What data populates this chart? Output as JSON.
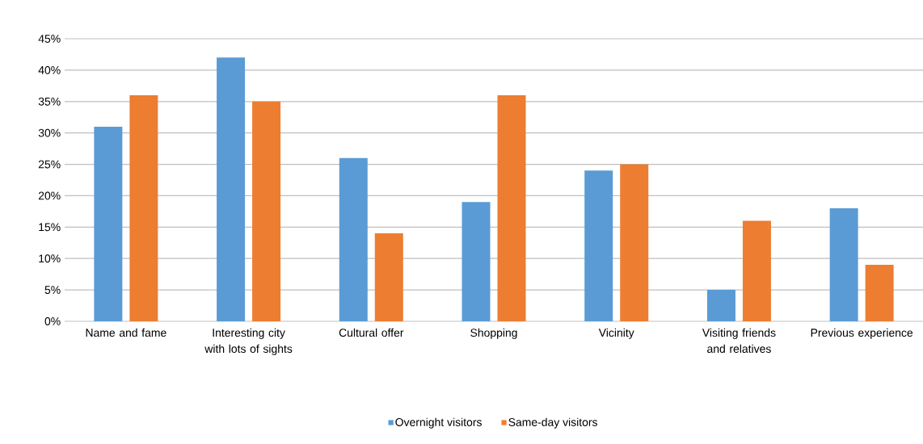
{
  "chart_data": {
    "type": "bar",
    "categories": [
      "Name and fame",
      "Interesting city with lots of sights",
      "Cultural offer",
      "Shopping",
      "Vicinity",
      "Visiting friends and relatives",
      "Previous experience"
    ],
    "series": [
      {
        "name": "Overnight visitors",
        "color": "#5b9bd5",
        "values": [
          31,
          42,
          26,
          19,
          24,
          5,
          18
        ]
      },
      {
        "name": "Same-day visitors",
        "color": "#ed7d31",
        "values": [
          36,
          35,
          14,
          36,
          25,
          16,
          9
        ]
      }
    ],
    "ylim": [
      0,
      45
    ],
    "yticks": [
      {
        "value": 0,
        "label": "0%"
      },
      {
        "value": 5,
        "label": "5%"
      },
      {
        "value": 10,
        "label": "10%"
      },
      {
        "value": 15,
        "label": "15%"
      },
      {
        "value": 20,
        "label": "20%"
      },
      {
        "value": 25,
        "label": "25%"
      },
      {
        "value": 30,
        "label": "30%"
      },
      {
        "value": 35,
        "label": "35%"
      },
      {
        "value": 40,
        "label": "40%"
      },
      {
        "value": 45,
        "label": "45%"
      }
    ],
    "grid": "y",
    "legend": "bottom"
  }
}
